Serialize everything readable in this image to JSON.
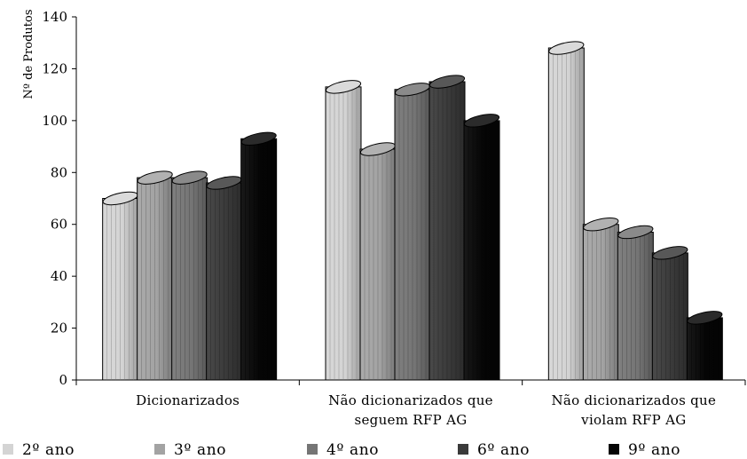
{
  "chart_data": {
    "type": "bar",
    "style": "3d-cylinder",
    "ylabel": "Nº de Produtos",
    "xlabel": "",
    "ylim": [
      0,
      140
    ],
    "yticks": [
      0,
      20,
      40,
      60,
      80,
      100,
      120,
      140
    ],
    "grid": false,
    "legend_position": "bottom",
    "categories": [
      [
        "Dicionarizados"
      ],
      [
        "Não dicionarizados que",
        "seguem RFP AG"
      ],
      [
        "Não dicionarizados que",
        "violam RFP AG"
      ]
    ],
    "series": [
      {
        "name": "2º ano",
        "color": "#d4d4d4",
        "values": [
          70,
          113,
          128
        ]
      },
      {
        "name": "3º ano",
        "color": "#a3a3a3",
        "values": [
          78,
          89,
          60
        ]
      },
      {
        "name": "4º ano",
        "color": "#757575",
        "values": [
          78,
          112,
          57
        ]
      },
      {
        "name": "6º ano",
        "color": "#3a3a3a",
        "values": [
          76,
          115,
          49
        ]
      },
      {
        "name": "9º ano",
        "color": "#050505",
        "values": [
          93,
          100,
          24
        ]
      }
    ]
  }
}
